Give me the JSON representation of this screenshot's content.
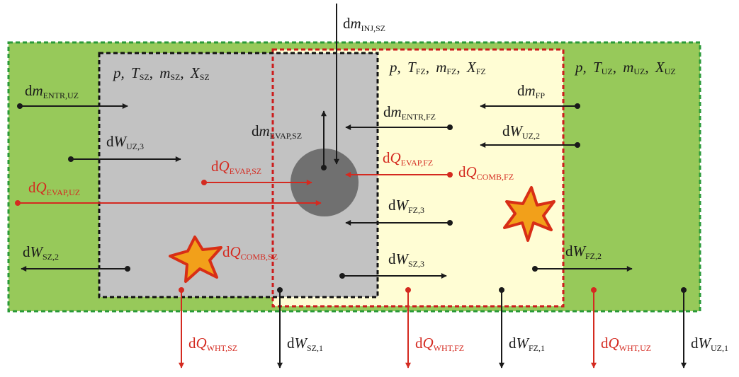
{
  "colors": {
    "unburned_zone": "#97c95a",
    "spray_zone": "#c2c2c2",
    "flame_zone": "#fffdd4",
    "droplet": "#707070",
    "heat_arrow": "#d42a20",
    "work_arrow": "#1a1a1a",
    "border_green": "#2a9a38",
    "border_red": "#cc1c1c",
    "border_black": "#111111",
    "star_fill": "#f2a01a",
    "star_edge": "#d82e16"
  },
  "zones": {
    "sz": {
      "p": "p,",
      "T": "T",
      "T_sub": "SZ",
      "m": "m",
      "m_sub": "SZ",
      "X": "X",
      "X_sub": "SZ"
    },
    "fz": {
      "p": "p,",
      "T": "T",
      "T_sub": "FZ",
      "m": "m",
      "m_sub": "FZ",
      "X": "X",
      "X_sub": "FZ"
    },
    "uz": {
      "p": "p,",
      "T": "T",
      "T_sub": "UZ",
      "m": "m",
      "m_sub": "UZ",
      "X": "X",
      "X_sub": "UZ"
    }
  },
  "flows": {
    "dm_inj_sz": {
      "d": "d",
      "sym": "m",
      "sub": "INJ,SZ"
    },
    "dm_entr_uz": {
      "d": "d",
      "sym": "m",
      "sub": "ENTR,UZ"
    },
    "dm_entr_fz": {
      "d": "d",
      "sym": "m",
      "sub": "ENTR,FZ"
    },
    "dm_fp": {
      "d": "d",
      "sym": "m",
      "sub": "FP"
    },
    "dm_evap_sz": {
      "d": "d",
      "sym": "m",
      "sub": "EVAP,SZ"
    },
    "dw_uz3": {
      "d": "d",
      "sym": "W",
      "sub": "UZ,3"
    },
    "dw_uz2": {
      "d": "d",
      "sym": "W",
      "sub": "UZ,2"
    },
    "dq_evap_sz": {
      "d": "d",
      "sym": "Q",
      "sub": "EVAP,SZ"
    },
    "dq_evap_fz": {
      "d": "d",
      "sym": "Q",
      "sub": "EVAP,FZ"
    },
    "dq_comb_fz": {
      "d": "d",
      "sym": "Q",
      "sub": "COMB,FZ"
    },
    "dq_evap_uz": {
      "d": "d",
      "sym": "Q",
      "sub": "EVAP,UZ"
    },
    "dw_fz3": {
      "d": "d",
      "sym": "W",
      "sub": "FZ,3"
    },
    "dw_sz2": {
      "d": "d",
      "sym": "W",
      "sub": "SZ,2"
    },
    "dq_comb_sz": {
      "d": "d",
      "sym": "Q",
      "sub": "COMB,SZ"
    },
    "dw_sz3": {
      "d": "d",
      "sym": "W",
      "sub": "SZ,3"
    },
    "dw_fz2": {
      "d": "d",
      "sym": "W",
      "sub": "FZ,2"
    },
    "dq_wht_sz": {
      "d": "d",
      "sym": "Q",
      "sub": "WHT,SZ"
    },
    "dw_sz1": {
      "d": "d",
      "sym": "W",
      "sub": "SZ,1"
    },
    "dq_wht_fz": {
      "d": "d",
      "sym": "Q",
      "sub": "WHT,FZ"
    },
    "dw_fz1": {
      "d": "d",
      "sym": "W",
      "sub": "FZ,1"
    },
    "dq_wht_uz": {
      "d": "d",
      "sym": "Q",
      "sub": "WHT,UZ"
    },
    "dw_uz1": {
      "d": "d",
      "sym": "W",
      "sub": "UZ,1"
    }
  }
}
